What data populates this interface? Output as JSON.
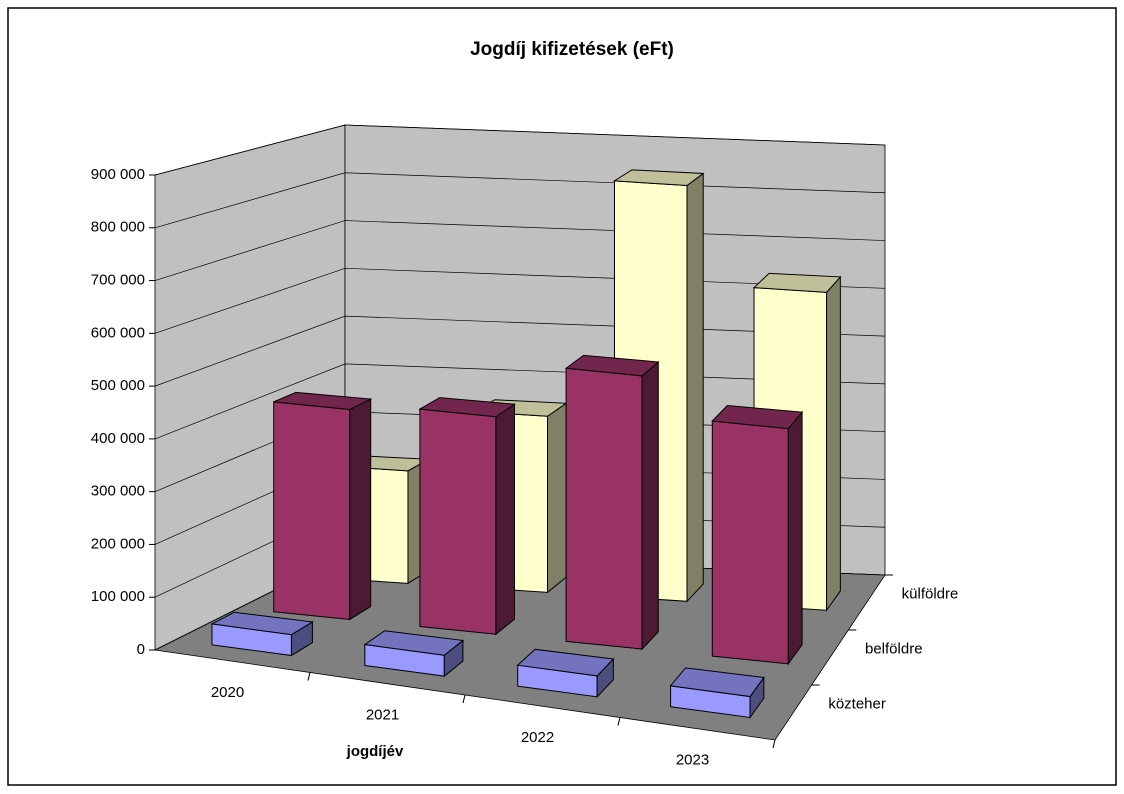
{
  "chart_data": {
    "type": "bar3d",
    "title": "Jogdíj kifizetések (eFt)",
    "x_label": "jogdíjév",
    "categories": [
      "2020",
      "2021",
      "2022",
      "2023"
    ],
    "series": [
      {
        "name": "közteher",
        "color": "#9999ff",
        "values": [
          40000,
          40000,
          40000,
          40000
        ]
      },
      {
        "name": "belföldre",
        "color": "#993366",
        "values": [
          415000,
          430000,
          540000,
          465000
        ]
      },
      {
        "name": "külföldre",
        "color": "#ffffcc",
        "values": [
          230000,
          360000,
          850000,
          650000
        ]
      }
    ],
    "ylim": [
      0,
      900000
    ],
    "yticks": [
      0,
      {
        "value": 100000,
        "label": "100 000"
      },
      {
        "value": 200000,
        "label": "200 000"
      },
      {
        "value": 300000,
        "label": "300 000"
      },
      {
        "value": 400000,
        "label": "400 000"
      },
      {
        "value": 500000,
        "label": "500 000"
      },
      {
        "value": 600000,
        "label": "600 000"
      },
      {
        "value": 700000,
        "label": "700 000"
      },
      {
        "value": 800000,
        "label": "800 000"
      },
      {
        "value": 900000,
        "label": "900 000"
      }
    ],
    "grid": true
  }
}
